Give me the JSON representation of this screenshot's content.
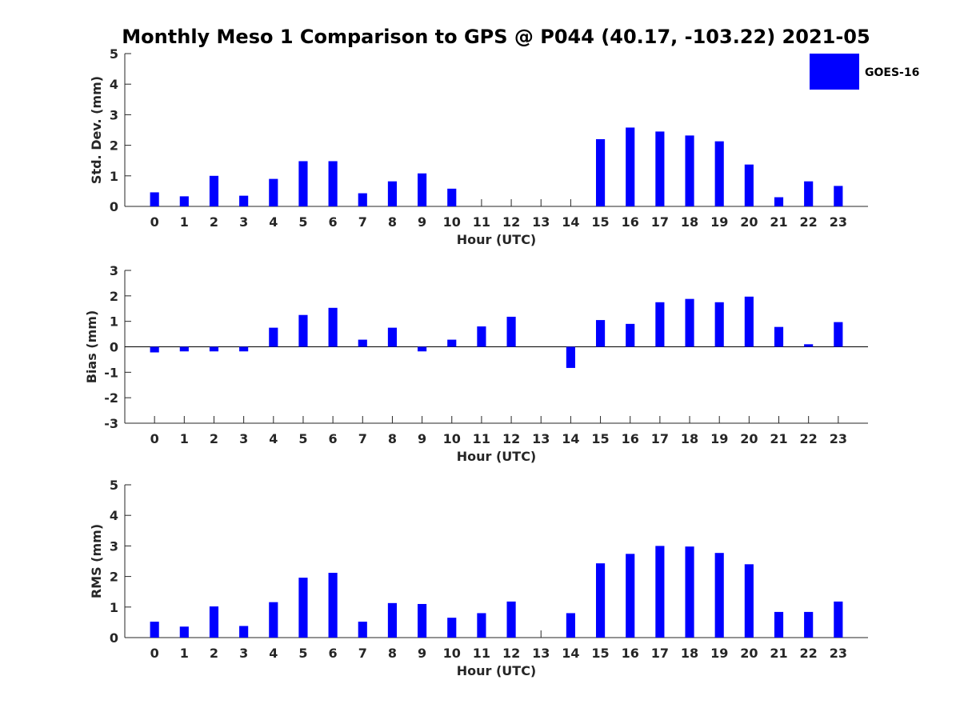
{
  "title": "Monthly Meso 1 Comparison to GPS @ P044 (40.17, -103.22) 2021-05",
  "legend": {
    "label": "GOES-16",
    "color": "#0000ff",
    "position": "top-right"
  },
  "chart_data": [
    {
      "type": "bar",
      "xlabel": "Hour (UTC)",
      "ylabel": "Std. Dev. (mm)",
      "ylim": [
        0,
        5
      ],
      "yticks": [
        0,
        1,
        2,
        3,
        4,
        5
      ],
      "categories": [
        "0",
        "1",
        "2",
        "3",
        "4",
        "5",
        "6",
        "7",
        "8",
        "9",
        "10",
        "11",
        "12",
        "13",
        "14",
        "15",
        "16",
        "17",
        "18",
        "19",
        "20",
        "21",
        "22",
        "23"
      ],
      "series": [
        {
          "name": "GOES-16",
          "color": "#0000ff",
          "values": [
            0.46,
            0.33,
            1.0,
            0.35,
            0.9,
            1.48,
            1.48,
            0.43,
            0.82,
            1.08,
            0.58,
            0,
            0,
            0,
            0,
            2.2,
            2.58,
            2.45,
            2.32,
            2.13,
            1.37,
            0.3,
            0.82,
            0.67
          ]
        }
      ],
      "grid": false
    },
    {
      "type": "bar",
      "xlabel": "Hour (UTC)",
      "ylabel": "Bias (mm)",
      "ylim": [
        -3,
        3
      ],
      "yticks": [
        -3,
        -2,
        -1,
        0,
        1,
        2,
        3
      ],
      "categories": [
        "0",
        "1",
        "2",
        "3",
        "4",
        "5",
        "6",
        "7",
        "8",
        "9",
        "10",
        "11",
        "12",
        "13",
        "14",
        "15",
        "16",
        "17",
        "18",
        "19",
        "20",
        "21",
        "22",
        "23"
      ],
      "series": [
        {
          "name": "GOES-16",
          "color": "#0000ff",
          "values": [
            -0.22,
            -0.18,
            -0.18,
            -0.18,
            0.75,
            1.25,
            1.53,
            0.28,
            0.75,
            -0.18,
            0.28,
            0.8,
            1.18,
            0,
            -0.83,
            1.05,
            0.9,
            1.75,
            1.88,
            1.75,
            1.97,
            0.78,
            0.1,
            0.97
          ]
        }
      ],
      "grid": false
    },
    {
      "type": "bar",
      "xlabel": "Hour (UTC)",
      "ylabel": "RMS (mm)",
      "ylim": [
        0,
        5
      ],
      "yticks": [
        0,
        1,
        2,
        3,
        4,
        5
      ],
      "categories": [
        "0",
        "1",
        "2",
        "3",
        "4",
        "5",
        "6",
        "7",
        "8",
        "9",
        "10",
        "11",
        "12",
        "13",
        "14",
        "15",
        "16",
        "17",
        "18",
        "19",
        "20",
        "21",
        "22",
        "23"
      ],
      "series": [
        {
          "name": "GOES-16",
          "color": "#0000ff",
          "values": [
            0.52,
            0.36,
            1.02,
            0.38,
            1.16,
            1.96,
            2.12,
            0.52,
            1.13,
            1.1,
            0.65,
            0.8,
            1.18,
            0,
            0.8,
            2.43,
            2.74,
            3.0,
            2.98,
            2.77,
            2.4,
            0.84,
            0.84,
            1.18
          ]
        }
      ],
      "grid": false
    }
  ]
}
